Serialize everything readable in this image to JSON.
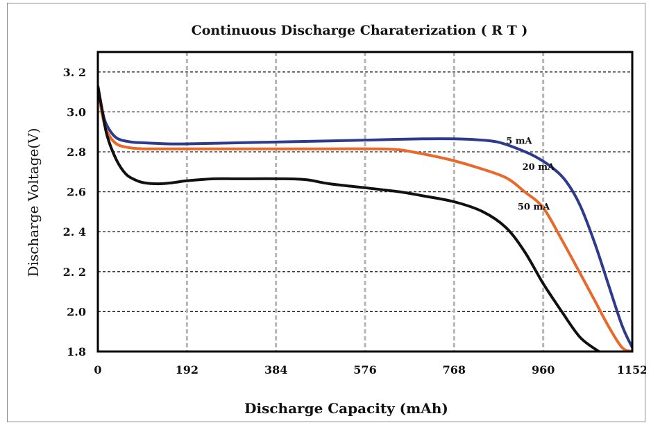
{
  "chart_data": {
    "type": "line",
    "title": "Continuous Discharge Charaterization ( R T )",
    "xlabel": "Discharge Capacity (mAh)",
    "ylabel": "Discharge Voltage(V)",
    "xlim": [
      0,
      1152
    ],
    "ylim": [
      1.8,
      3.3
    ],
    "x_ticks": [
      "0",
      "192",
      "384",
      "576",
      "768",
      "960",
      "1152"
    ],
    "y_ticks": [
      "1.8",
      "2.0",
      "2.2",
      "2.4",
      "2.6",
      "2.8",
      "3.0",
      "3.2"
    ],
    "y_tick_labels": [
      "1.8",
      "2.0",
      "2. 2",
      "2. 4",
      "2.6",
      "2.8",
      "3.0",
      "3. 2"
    ],
    "grid": true,
    "series": [
      {
        "name": "5 mA",
        "color": "#2e3a8c",
        "x": [
          0,
          10,
          20,
          40,
          70,
          100,
          150,
          192,
          300,
          400,
          500,
          600,
          700,
          768,
          820,
          860,
          900,
          940,
          980,
          1010,
          1040,
          1070,
          1100,
          1130,
          1152
        ],
        "y": [
          3.13,
          3.0,
          2.93,
          2.87,
          2.85,
          2.845,
          2.84,
          2.84,
          2.845,
          2.85,
          2.855,
          2.86,
          2.865,
          2.865,
          2.86,
          2.85,
          2.82,
          2.78,
          2.72,
          2.65,
          2.53,
          2.35,
          2.14,
          1.93,
          1.82
        ]
      },
      {
        "name": "20 mA",
        "color": "#e8692a",
        "x": [
          0,
          10,
          20,
          40,
          70,
          100,
          150,
          192,
          300,
          400,
          500,
          600,
          650,
          700,
          760,
          820,
          880,
          920,
          960,
          1000,
          1040,
          1070,
          1100,
          1130,
          1152
        ],
        "y": [
          3.12,
          2.98,
          2.9,
          2.84,
          2.82,
          2.815,
          2.815,
          2.815,
          2.815,
          2.815,
          2.815,
          2.815,
          2.81,
          2.79,
          2.76,
          2.72,
          2.67,
          2.6,
          2.52,
          2.36,
          2.19,
          2.06,
          1.93,
          1.82,
          1.8
        ]
      },
      {
        "name": "50 mA",
        "color": "#111111",
        "x": [
          0,
          10,
          20,
          40,
          60,
          80,
          100,
          130,
          160,
          192,
          250,
          300,
          400,
          450,
          500,
          576,
          650,
          700,
          768,
          830,
          880,
          920,
          960,
          1000,
          1040,
          1080
        ],
        "y": [
          3.13,
          3.0,
          2.88,
          2.76,
          2.69,
          2.66,
          2.645,
          2.64,
          2.645,
          2.655,
          2.665,
          2.665,
          2.665,
          2.66,
          2.64,
          2.62,
          2.6,
          2.58,
          2.55,
          2.5,
          2.42,
          2.3,
          2.14,
          2.0,
          1.87,
          1.8
        ]
      }
    ],
    "annotations": [
      "5 mA",
      "20 mA",
      "50 mA"
    ]
  }
}
